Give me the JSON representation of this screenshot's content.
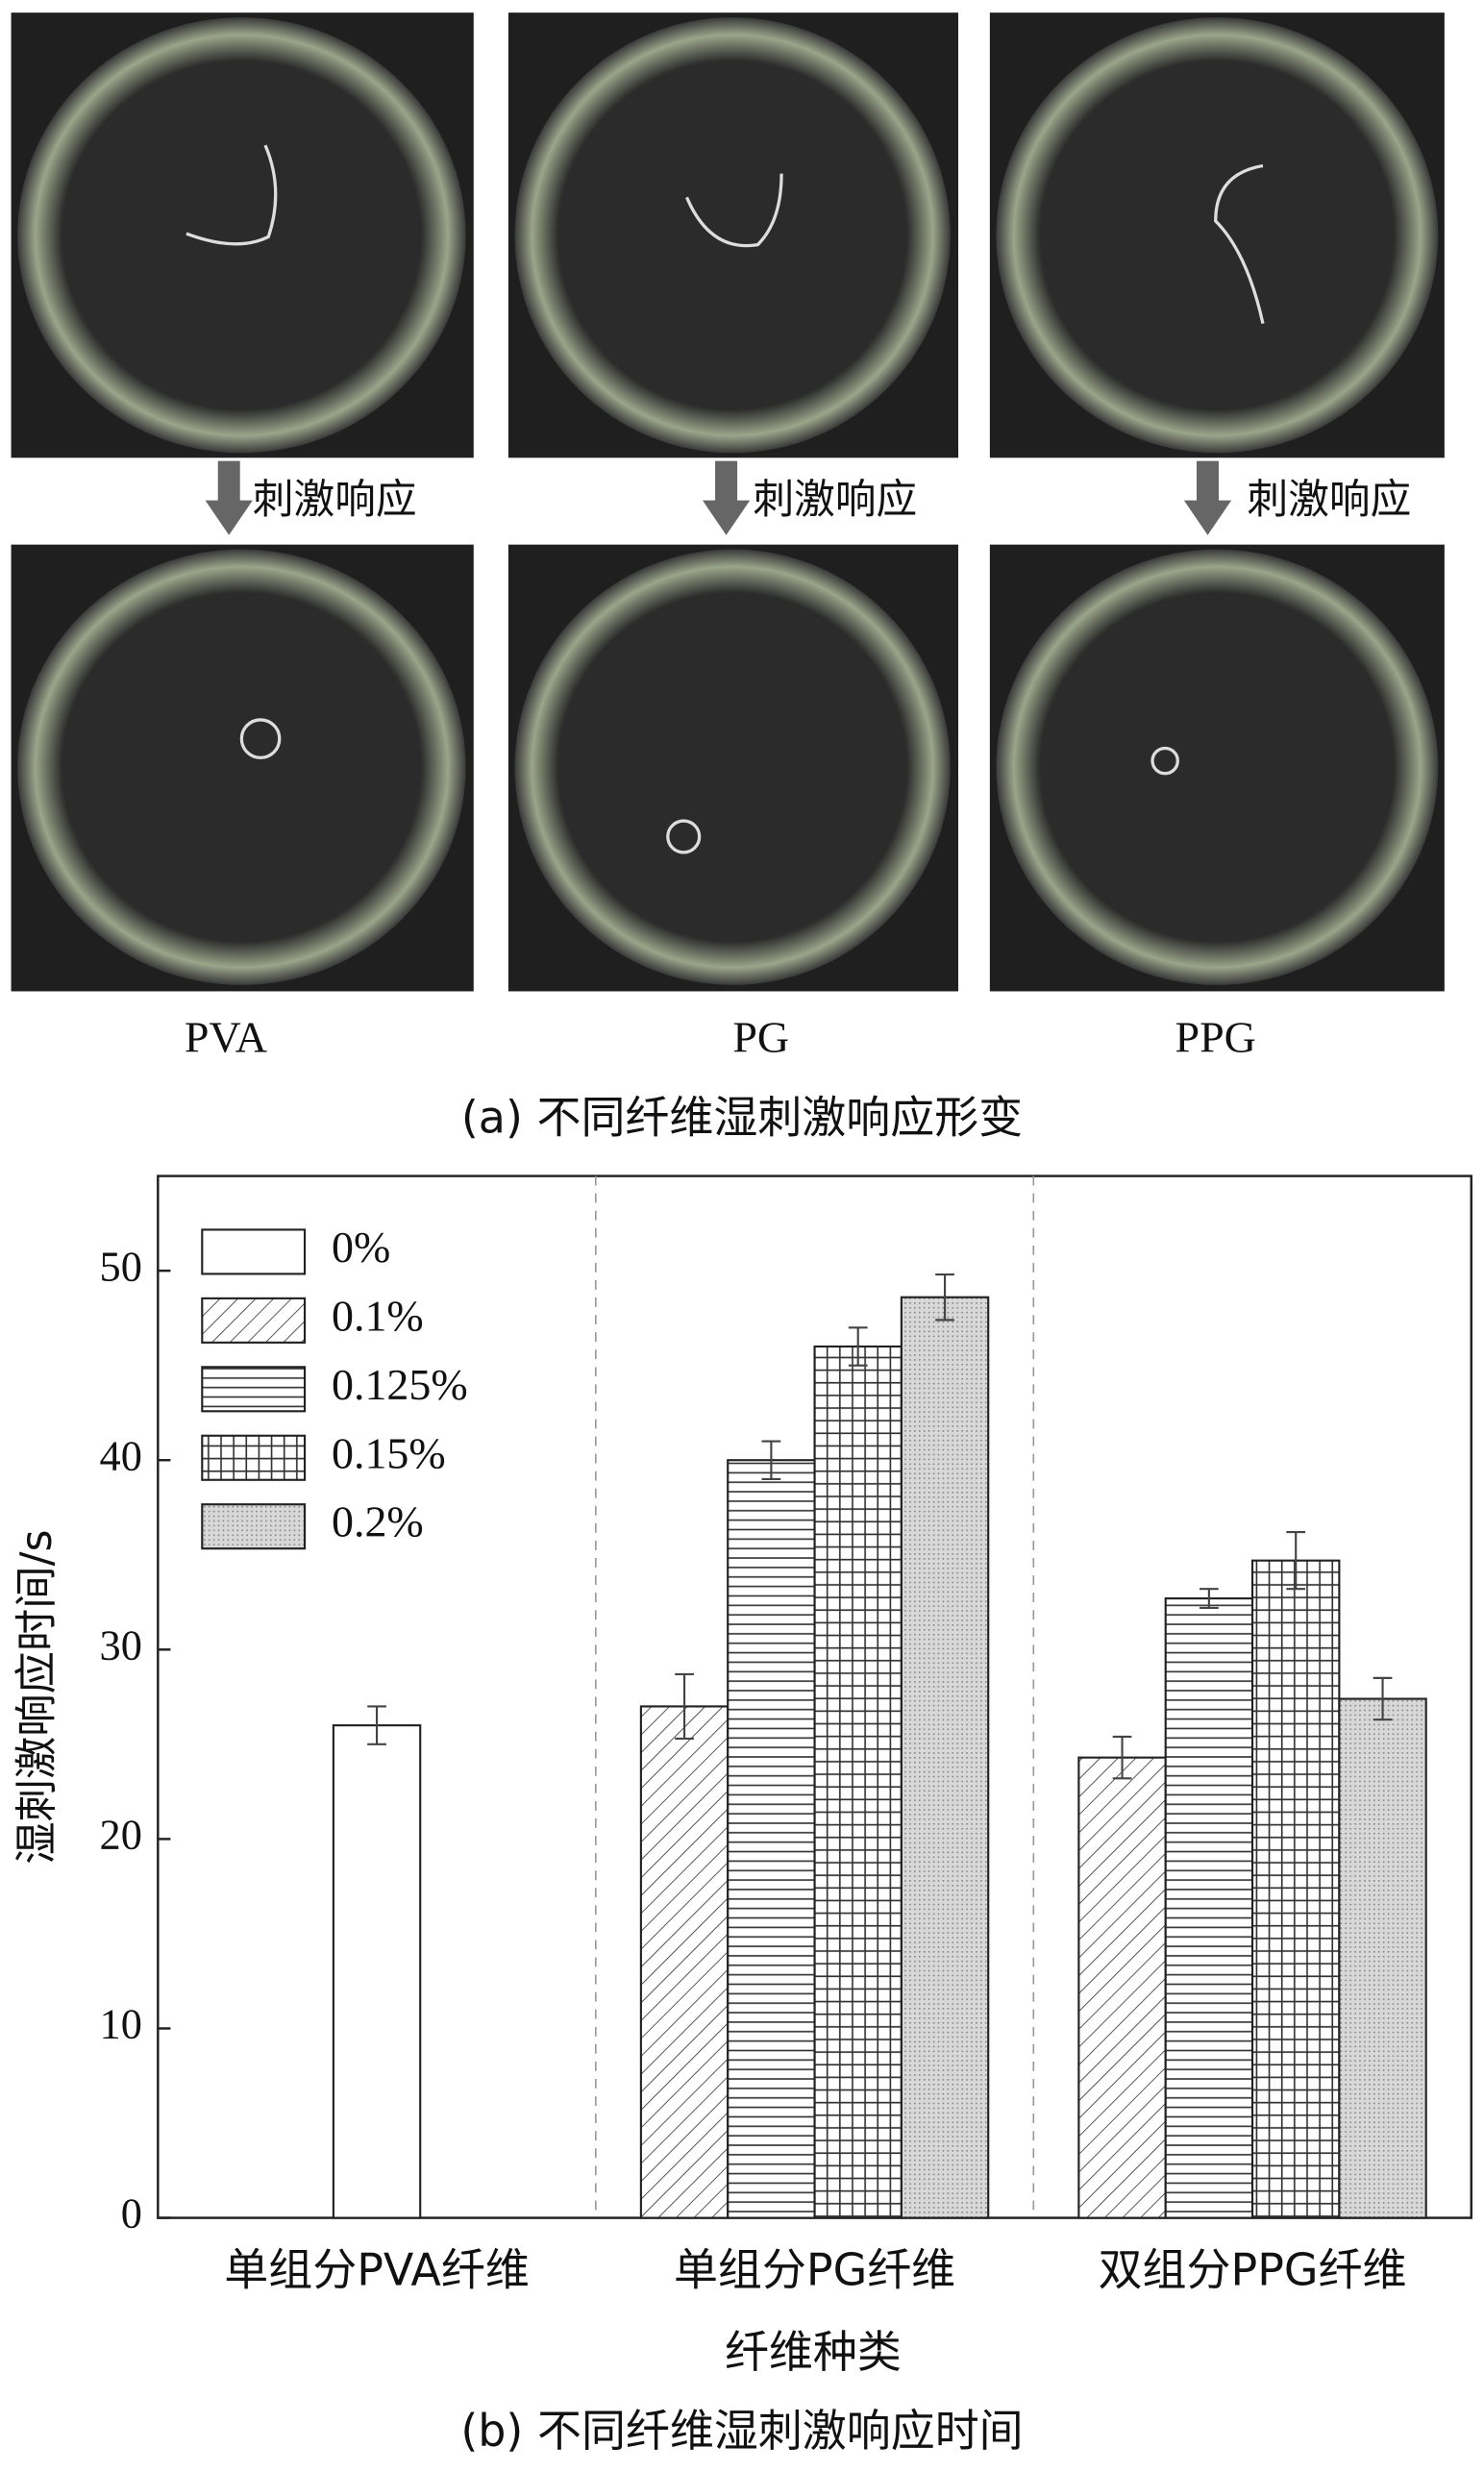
{
  "figure_a": {
    "stimulus_labels": [
      "刺激响应",
      "刺激响应",
      "刺激响应"
    ],
    "fiber_labels": [
      "PVA",
      "PG",
      "PPG"
    ],
    "caption": "(a) 不同纤维湿刺激响应形变"
  },
  "chart_data": {
    "type": "bar",
    "caption": "(b) 不同纤维湿刺激响应时间",
    "x_label": "纤维种类",
    "y_label": "湿刺激响应时间/s",
    "categories": [
      "单组分PVA纤维",
      "单组分PG纤维",
      "双组分PPG纤维"
    ],
    "series": [
      {
        "name": "0%",
        "color": "#ffffff",
        "hatch": "none",
        "values": [
          26,
          null,
          null
        ],
        "errors": [
          1,
          null,
          null
        ]
      },
      {
        "name": "0.1%",
        "color": "#ffffff",
        "hatch": "diagonal",
        "values": [
          null,
          27,
          24.3
        ],
        "errors": [
          null,
          1.7,
          1.1
        ]
      },
      {
        "name": "0.125%",
        "color": "#ffffff",
        "hatch": "horizontal",
        "values": [
          null,
          40,
          32.7
        ],
        "errors": [
          null,
          1,
          0.5
        ]
      },
      {
        "name": "0.15%",
        "color": "#ffffff",
        "hatch": "grid",
        "values": [
          null,
          46,
          34.7
        ],
        "errors": [
          null,
          1,
          1.5
        ]
      },
      {
        "name": "0.2%",
        "color": "#d8d8d8",
        "hatch": "dots",
        "values": [
          null,
          48.6,
          27.4
        ],
        "errors": [
          null,
          1.2,
          1.1
        ]
      }
    ],
    "ylim": [
      0,
      55
    ],
    "yticks": [
      0,
      10,
      20,
      30,
      40,
      50
    ],
    "group_separators": true
  }
}
